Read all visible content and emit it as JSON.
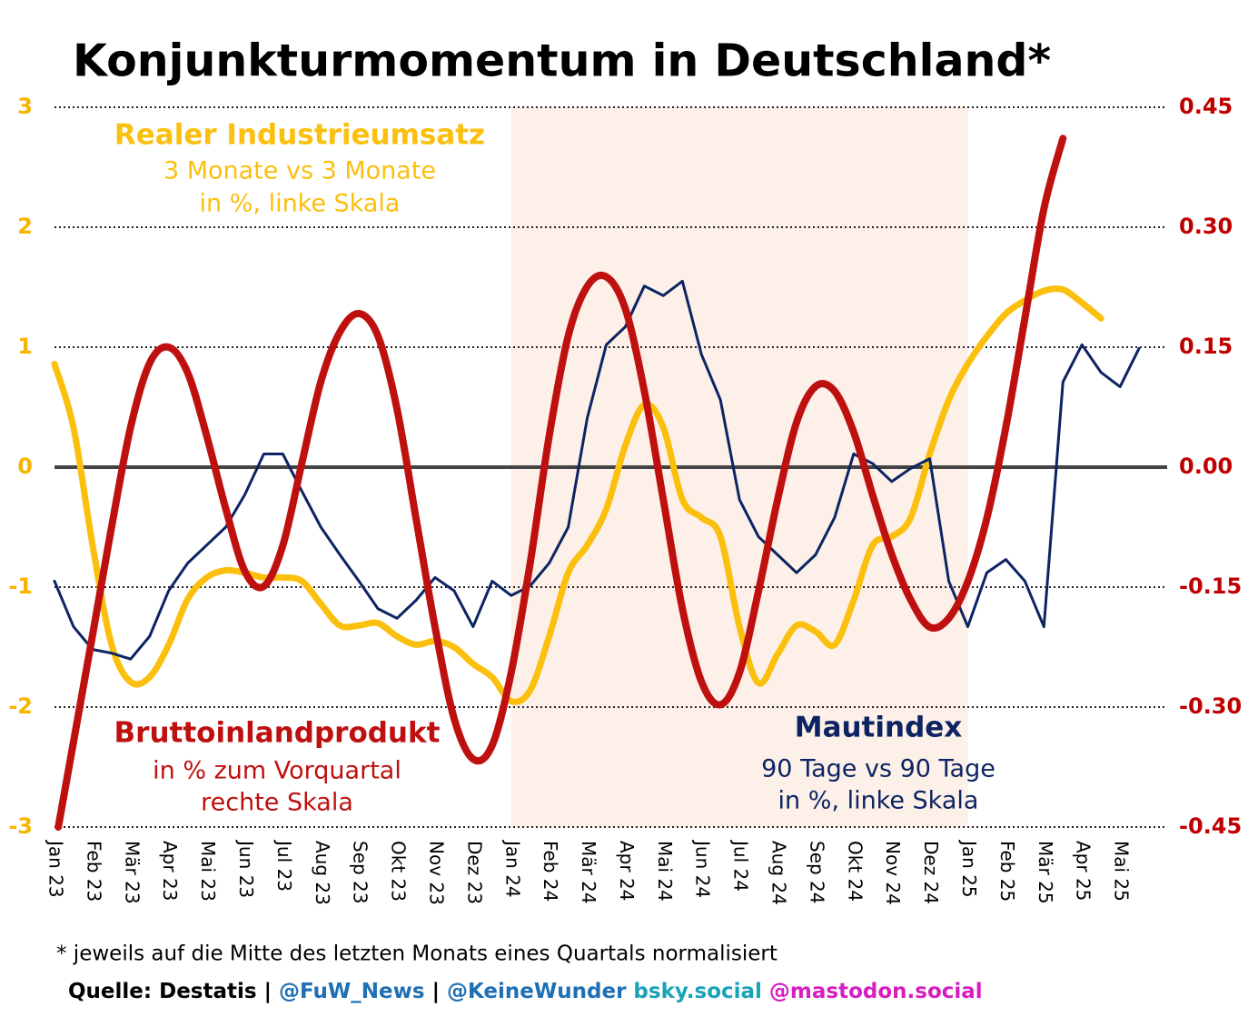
{
  "chart_data": {
    "type": "line",
    "title": "Konjunkturmomentum in Deutschland*",
    "categories": [
      "Jan 23",
      "Feb 23",
      "Mär 23",
      "Apr 23",
      "Mai 23",
      "Jun 23",
      "Jul 23",
      "Aug 23",
      "Sep 23",
      "Okt 23",
      "Nov 23",
      "Dez 23",
      "Jan 24",
      "Feb 24",
      "Mär 24",
      "Apr 24",
      "Mai 24",
      "Jun 24",
      "Jul 24",
      "Aug 24",
      "Sep 24",
      "Okt 24",
      "Nov 24",
      "Dez 24",
      "Jan 25",
      "Feb 25",
      "Mär 25",
      "Apr 25",
      "Mai 25"
    ],
    "xlim": [
      0,
      29
    ],
    "ylim": [
      -3,
      3
    ],
    "yticks": [
      -3,
      -2,
      -1,
      0,
      1,
      2,
      3
    ],
    "ytick_color": "#f7b500",
    "y2lim": [
      -0.45,
      0.45
    ],
    "y2ticks": [
      -0.45,
      {
        "value": -0.3,
        "label": "-0.30"
      },
      -0.15,
      {
        "value": 0,
        "label": "0.00"
      },
      0.15,
      {
        "value": 0.3,
        "label": "0.30"
      },
      0.45
    ],
    "y2tick_color": "#c00000",
    "grid": true,
    "highlight": {
      "x": [
        12,
        24
      ],
      "color": "#fcf0e8"
    },
    "series": [
      {
        "name": "Realer Industrieumsatz",
        "color": "#fbbf0e",
        "width": 7,
        "axis": "y",
        "x": [
          0,
          0.5,
          1,
          1.5,
          2,
          2.5,
          3,
          3.5,
          4,
          4.5,
          5,
          5.5,
          6,
          6.5,
          7,
          7.5,
          8,
          8.5,
          9,
          9.5,
          10,
          10.5,
          11,
          11.5,
          12,
          12.5,
          13,
          13.5,
          14,
          14.5,
          15,
          15.5,
          16,
          16.5,
          17,
          17.5,
          18,
          18.5,
          19,
          19.5,
          20,
          20.5,
          21,
          21.5,
          22,
          22.5,
          23,
          23.5,
          24,
          24.5,
          25,
          25.5,
          26,
          26.5,
          27,
          27.5
        ],
        "values": [
          0.86,
          0.33,
          -0.65,
          -1.48,
          -1.79,
          -1.75,
          -1.48,
          -1.1,
          -0.92,
          -0.86,
          -0.88,
          -0.92,
          -0.92,
          -0.95,
          -1.14,
          -1.32,
          -1.32,
          -1.3,
          -1.41,
          -1.48,
          -1.45,
          -1.5,
          -1.64,
          -1.75,
          -1.95,
          -1.86,
          -1.41,
          -0.88,
          -0.65,
          -0.35,
          0.18,
          0.52,
          0.33,
          -0.27,
          -0.42,
          -0.58,
          -1.33,
          -1.8,
          -1.56,
          -1.32,
          -1.37,
          -1.48,
          -1.11,
          -0.65,
          -0.58,
          -0.42,
          0.11,
          0.56,
          0.86,
          1.09,
          1.28,
          1.39,
          1.47,
          1.48,
          1.37,
          1.24
        ]
      },
      {
        "name": "Mautindex",
        "color": "#0d2463",
        "width": 3,
        "axis": "y",
        "x": [
          0,
          0.5,
          1,
          1.5,
          2,
          2.5,
          3,
          3.5,
          4,
          4.5,
          5,
          5.5,
          6,
          6.5,
          7,
          7.5,
          8,
          8.5,
          9,
          9.5,
          10,
          10.5,
          11,
          11.5,
          12,
          12.5,
          13,
          13.5,
          14,
          14.5,
          15,
          15.5,
          16,
          16.5,
          17,
          17.5,
          18,
          18.5,
          19,
          19.5,
          20,
          20.5,
          21,
          21.5,
          22,
          22.5,
          23,
          23.5,
          24,
          24.5,
          25,
          25.5,
          26,
          26.5,
          27,
          27.5,
          28,
          28.5
        ],
        "values": [
          -0.95,
          -1.33,
          -1.52,
          -1.55,
          -1.6,
          -1.41,
          -1.03,
          -0.8,
          -0.65,
          -0.5,
          -0.23,
          0.11,
          0.11,
          -0.2,
          -0.5,
          -0.73,
          -0.95,
          -1.18,
          -1.26,
          -1.11,
          -0.92,
          -1.03,
          -1.33,
          -0.95,
          -1.07,
          -0.99,
          -0.8,
          -0.5,
          0.41,
          1.02,
          1.17,
          1.51,
          1.43,
          1.55,
          0.94,
          0.56,
          -0.27,
          -0.58,
          -0.73,
          -0.88,
          -0.73,
          -0.42,
          0.11,
          0.03,
          -0.12,
          -0.01,
          0.07,
          -0.95,
          -1.33,
          -0.88,
          -0.77,
          -0.95,
          -1.33,
          0.71,
          1.02,
          0.79,
          0.67,
          0.99
        ]
      },
      {
        "name": "Bruttoinlandprodukt",
        "color": "#bf1010",
        "width": 8,
        "axis": "y2",
        "x": [
          0.1,
          1,
          1.5,
          2,
          2.5,
          3,
          3.5,
          4,
          4.5,
          5,
          5.5,
          6,
          6.5,
          7,
          7.5,
          8,
          8.5,
          9,
          9.5,
          10,
          10.5,
          11,
          11.5,
          12,
          12.5,
          13,
          13.5,
          14,
          14.5,
          15,
          15.5,
          16,
          16.5,
          17,
          17.5,
          18,
          18.5,
          19,
          19.5,
          20,
          20.5,
          21,
          21.5,
          22,
          22.5,
          23,
          23.5,
          24,
          24.5,
          25,
          25.5,
          26,
          26.5
        ],
        "values": [
          -0.45,
          -0.21,
          -0.075,
          0.05,
          0.13,
          0.15,
          0.118,
          0.039,
          -0.052,
          -0.13,
          -0.149,
          -0.098,
          0.005,
          0.107,
          0.169,
          0.192,
          0.164,
          0.073,
          -0.064,
          -0.2,
          -0.314,
          -0.365,
          -0.348,
          -0.257,
          -0.12,
          0.039,
          0.164,
          0.226,
          0.238,
          0.198,
          0.095,
          -0.041,
          -0.177,
          -0.268,
          -0.297,
          -0.257,
          -0.155,
          -0.041,
          0.056,
          0.101,
          0.095,
          0.044,
          -0.035,
          -0.109,
          -0.166,
          -0.2,
          -0.189,
          -0.143,
          -0.064,
          0.05,
          0.186,
          0.323,
          0.411
        ]
      }
    ],
    "annotations": [
      {
        "lines": [
          "Realer Industrieumsatz",
          "3 Monate vs 3 Monate",
          "in %, linke Skala"
        ],
        "color": "#fbbf0e"
      },
      {
        "lines": [
          "Bruttoinlandprodukt",
          "in % zum Vorquartal",
          "rechte Skala"
        ],
        "color": "#bf1010"
      },
      {
        "lines": [
          "Mautindex",
          "90 Tage vs 90 Tage",
          "in %, linke Skala"
        ],
        "color": "#0d2463"
      }
    ],
    "footnote": "* jeweils auf die Mitte des letzten Monats eines Quartals normalisiert",
    "source": [
      {
        "text": "Quelle: Destatis | ",
        "color": "#000000"
      },
      {
        "text": "@FuW_News",
        "color": "#1f6fb5"
      },
      {
        "text": " | ",
        "color": "#000000"
      },
      {
        "text": "@KeineWunder",
        "color": "#1f6fb5"
      },
      {
        "text": " bsky.social",
        "color": "#1aa3b8"
      },
      {
        "text": " @mastodon.social",
        "color": "#d61ec0"
      }
    ]
  }
}
